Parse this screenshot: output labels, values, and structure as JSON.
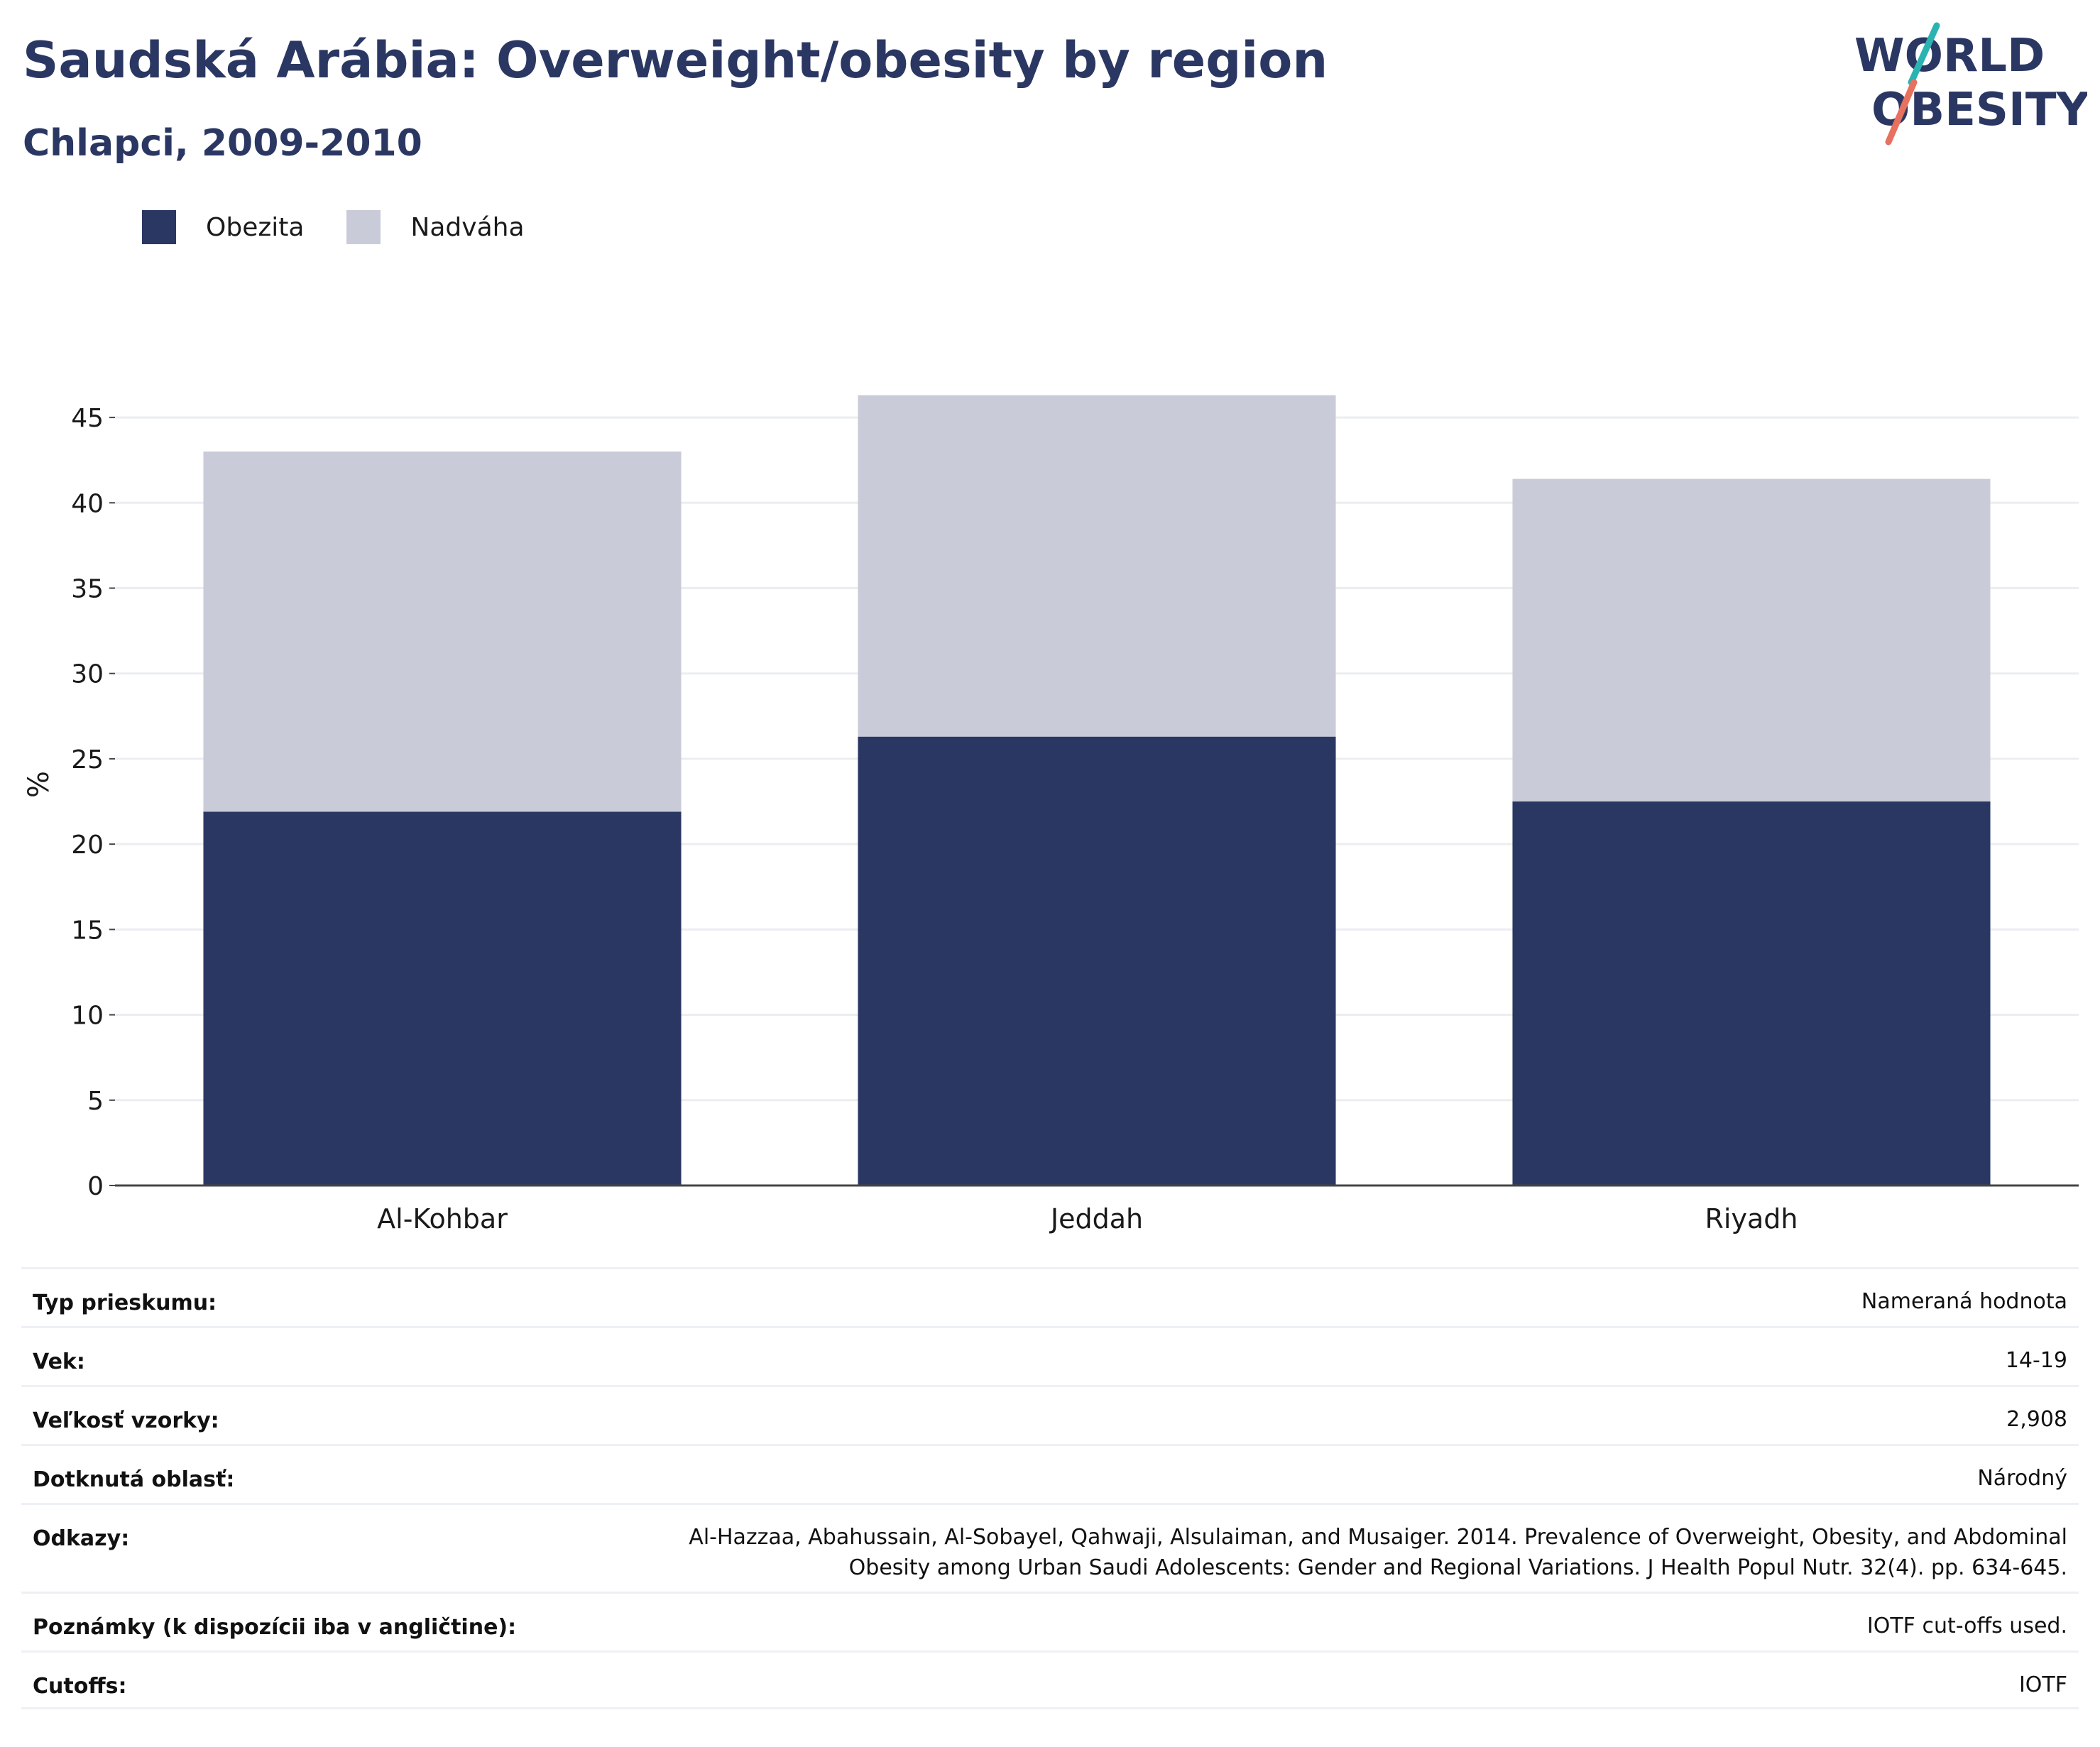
{
  "header": {
    "title": "Saudská Arábia: Overweight/obesity by region",
    "subtitle": "Chlapci, 2009-2010"
  },
  "logo": {
    "line1": "WORLD",
    "line2": "OBESITY"
  },
  "colors": {
    "obesity": "#2b3763",
    "overweight": "#c9ccd8",
    "title": "#2b3763",
    "logo_teal": "#2bb3b1",
    "logo_coral": "#e8705f",
    "grid": "#ebedf2"
  },
  "chart_data": {
    "type": "bar",
    "stacked": true,
    "categories": [
      "Al-Kohbar",
      "Jeddah",
      "Riyadh"
    ],
    "series": [
      {
        "name": "Obezita",
        "values": [
          21.9,
          26.3,
          22.5
        ]
      },
      {
        "name": "Nadváha",
        "values": [
          21.1,
          20.0,
          18.9
        ]
      }
    ],
    "ylabel": "%",
    "ylim": [
      0,
      47
    ],
    "yticks": [
      0,
      5,
      10,
      15,
      20,
      25,
      30,
      35,
      40,
      45
    ],
    "grid": true,
    "legend": "top-left"
  },
  "info": {
    "rows": [
      {
        "label": "Typ prieskumu:",
        "value": [
          "Nameraná hodnota"
        ]
      },
      {
        "label": "Vek:",
        "value": [
          "14-19"
        ]
      },
      {
        "label": "Veľkosť vzorky:",
        "value": [
          "2,908"
        ]
      },
      {
        "label": "Dotknutá oblasť:",
        "value": [
          "Národný"
        ]
      },
      {
        "label": "Odkazy:",
        "value": [
          "Al-Hazzaa, Abahussain, Al-Sobayel, Qahwaji, Alsulaiman, and Musaiger. 2014. Prevalence of Overweight, Obesity, and Abdominal",
          "Obesity among Urban Saudi Adolescents: Gender and Regional Variations. J Health Popul Nutr. 32(4). pp. 634-645."
        ]
      },
      {
        "label": "Poznámky (k dispozícii iba v angličtine):",
        "value": [
          "IOTF cut-offs used."
        ]
      },
      {
        "label": "Cutoffs:",
        "value": [
          "IOTF"
        ]
      }
    ]
  }
}
